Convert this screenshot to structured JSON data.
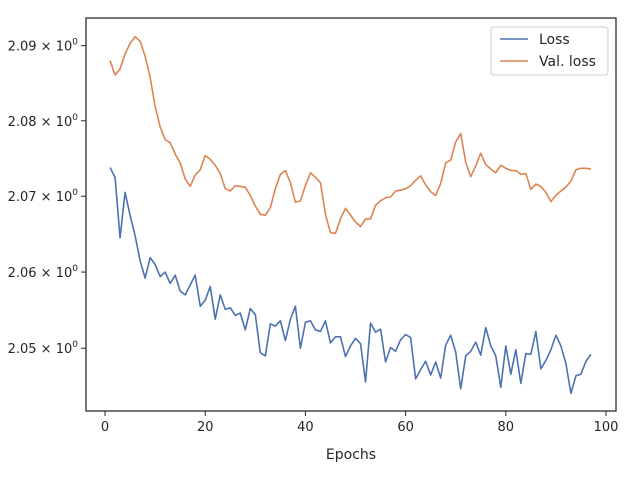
{
  "chart_data": {
    "type": "line",
    "xlabel": "Epochs",
    "ylabel": "",
    "title": "",
    "xlim": [
      -3.8,
      102
    ],
    "ylim": [
      2.0418,
      2.0937
    ],
    "y_scale": "log",
    "grid": false,
    "legend_position": "top-right",
    "x_ticks": [
      0,
      20,
      40,
      60,
      80,
      100
    ],
    "x_tick_labels": [
      "0",
      "20",
      "40",
      "60",
      "80",
      "100"
    ],
    "y_ticks": [
      2.05,
      2.06,
      2.07,
      2.08,
      2.09
    ],
    "y_tick_labels": [
      {
        "mantissa": "2.05",
        "base": "10",
        "exp": "0"
      },
      {
        "mantissa": "2.06",
        "base": "10",
        "exp": "0"
      },
      {
        "mantissa": "2.07",
        "base": "10",
        "exp": "0"
      },
      {
        "mantissa": "2.08",
        "base": "10",
        "exp": "0"
      },
      {
        "mantissa": "2.09",
        "base": "10",
        "exp": "0"
      }
    ],
    "x": [
      1,
      2,
      3,
      4,
      5,
      6,
      7,
      8,
      9,
      10,
      11,
      12,
      13,
      14,
      15,
      16,
      17,
      18,
      19,
      20,
      21,
      22,
      23,
      24,
      25,
      26,
      27,
      28,
      29,
      30,
      31,
      32,
      33,
      34,
      35,
      36,
      37,
      38,
      39,
      40,
      41,
      42,
      43,
      44,
      45,
      46,
      47,
      48,
      49,
      50,
      51,
      52,
      53,
      54,
      55,
      56,
      57,
      58,
      59,
      60,
      61,
      62,
      63,
      64,
      65,
      66,
      67,
      68,
      69,
      70,
      71,
      72,
      73,
      74,
      75,
      76,
      77,
      78,
      79,
      80,
      81,
      82,
      83,
      84,
      85,
      86,
      87,
      88,
      89,
      90,
      91,
      92,
      93,
      94,
      95,
      96,
      97
    ],
    "series": [
      {
        "name": "Loss",
        "color": "#4c72b0",
        "values": [
          2.0738,
          2.0725,
          2.0645,
          2.0705,
          2.0675,
          2.0648,
          2.0615,
          2.0592,
          2.0619,
          2.061,
          2.0594,
          2.06,
          2.0585,
          2.0596,
          2.0575,
          2.057,
          2.0583,
          2.0596,
          2.0555,
          2.0563,
          2.0581,
          2.0538,
          2.057,
          2.0551,
          2.0553,
          2.0543,
          2.0546,
          2.0524,
          2.0552,
          2.0544,
          2.0494,
          2.049,
          2.0532,
          2.0529,
          2.0536,
          2.051,
          2.0538,
          2.0555,
          2.05,
          2.0534,
          2.0536,
          2.0524,
          2.0522,
          2.0536,
          2.0507,
          2.0515,
          2.0515,
          2.0489,
          2.0503,
          2.0513,
          2.0506,
          2.0456,
          2.0533,
          2.0521,
          2.0525,
          2.0482,
          2.0501,
          2.0496,
          2.0511,
          2.0518,
          2.0514,
          2.046,
          2.0472,
          2.0483,
          2.0465,
          2.0482,
          2.0461,
          2.0504,
          2.0517,
          2.0495,
          2.0447,
          2.049,
          2.0496,
          2.0508,
          2.0491,
          2.0527,
          2.0503,
          2.049,
          2.0449,
          2.0503,
          2.0466,
          2.0498,
          2.0454,
          2.0493,
          2.0492,
          2.0522,
          2.0473,
          2.0484,
          2.0498,
          2.0517,
          2.0503,
          2.048,
          2.0441,
          2.0464,
          2.0466,
          2.0483,
          2.0492
        ]
      },
      {
        "name": "Val. loss",
        "color": "#dd8452",
        "values": [
          2.088,
          2.0861,
          2.0869,
          2.0889,
          2.0903,
          2.0912,
          2.0906,
          2.0886,
          2.0858,
          2.0819,
          2.0792,
          2.0775,
          2.0771,
          2.0756,
          2.0744,
          2.0723,
          2.0713,
          2.0728,
          2.0735,
          2.0754,
          2.0749,
          2.0741,
          2.073,
          2.071,
          2.0707,
          2.0714,
          2.0713,
          2.0712,
          2.0701,
          2.0687,
          2.0676,
          2.0675,
          2.0685,
          2.071,
          2.0729,
          2.0734,
          2.0718,
          2.0692,
          2.0694,
          2.0714,
          2.0731,
          2.0725,
          2.0718,
          2.0676,
          2.0652,
          2.0651,
          2.067,
          2.0684,
          2.0675,
          2.0666,
          2.066,
          2.067,
          2.067,
          2.0688,
          2.0694,
          2.0698,
          2.0699,
          2.0707,
          2.0708,
          2.071,
          2.0714,
          2.0721,
          2.0727,
          2.0715,
          2.0706,
          2.0701,
          2.0717,
          2.0744,
          2.0748,
          2.0772,
          2.0783,
          2.0745,
          2.0726,
          2.074,
          2.0757,
          2.0742,
          2.0736,
          2.0731,
          2.0741,
          2.0737,
          2.0734,
          2.0734,
          2.0729,
          2.073,
          2.0709,
          2.0716,
          2.0713,
          2.0705,
          2.0693,
          2.0701,
          2.0707,
          2.0712,
          2.072,
          2.0735,
          2.0737,
          2.0737,
          2.0736
        ]
      }
    ]
  }
}
